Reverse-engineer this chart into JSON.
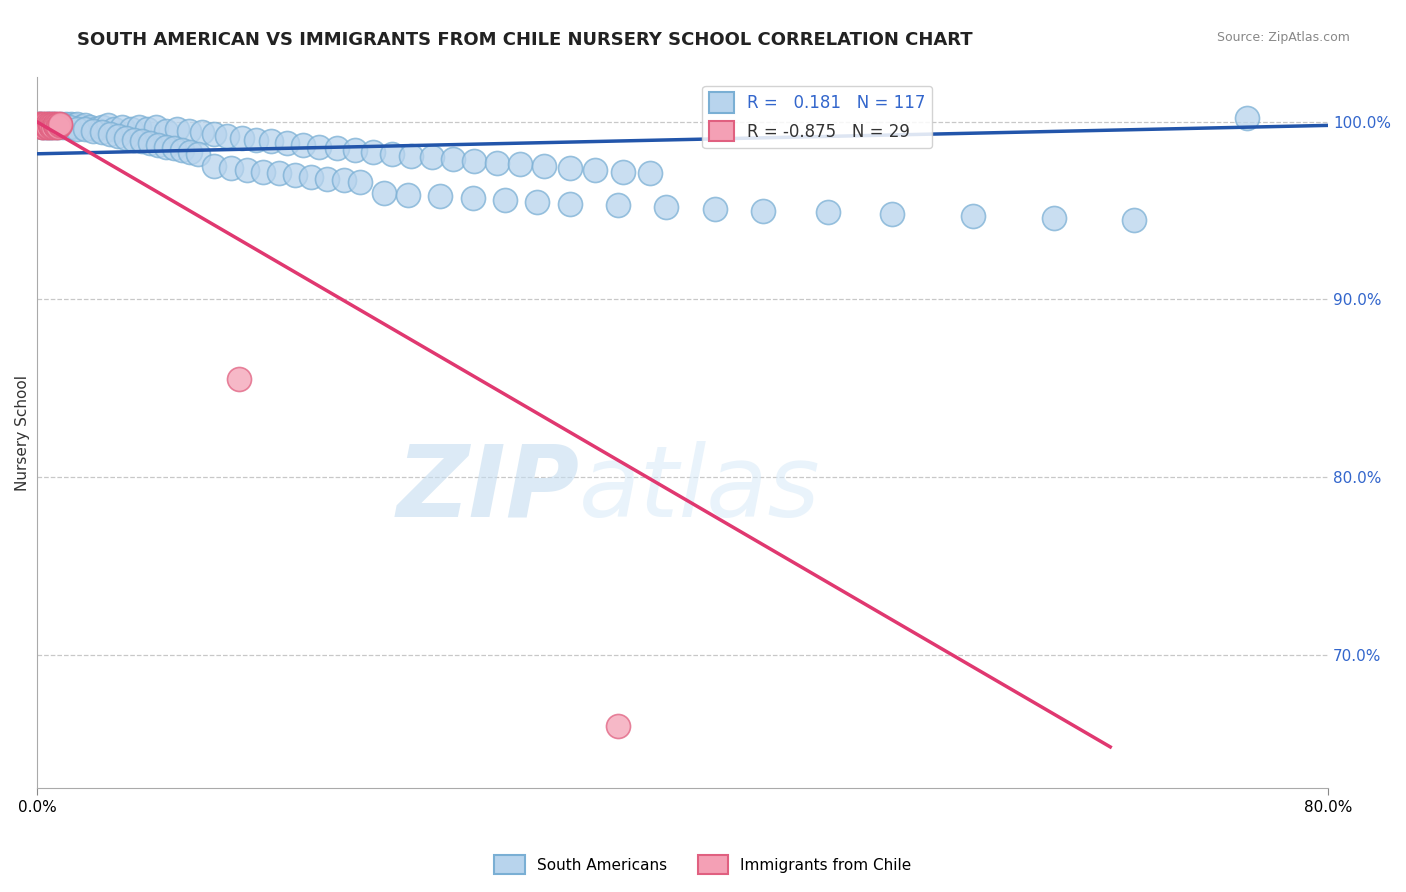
{
  "title": "SOUTH AMERICAN VS IMMIGRANTS FROM CHILE NURSERY SCHOOL CORRELATION CHART",
  "source": "Source: ZipAtlas.com",
  "ylabel": "Nursery School",
  "ylabel_right_ticks": [
    "100.0%",
    "90.0%",
    "80.0%",
    "70.0%"
  ],
  "ylabel_right_vals": [
    1.0,
    0.9,
    0.8,
    0.7
  ],
  "xmin": 0.0,
  "xmax": 0.8,
  "ymin": 0.625,
  "ymax": 1.025,
  "blue_R": 0.181,
  "blue_N": 117,
  "pink_R": -0.875,
  "pink_N": 29,
  "blue_color": "#b8d4ed",
  "blue_edge": "#7aafd4",
  "blue_line_color": "#2255aa",
  "pink_color": "#f4a0b5",
  "pink_edge": "#e06080",
  "pink_line_color": "#e03870",
  "legend_label_blue": "South Americans",
  "legend_label_pink": "Immigrants from Chile",
  "grid_color": "#c8c8c8",
  "background_color": "#ffffff",
  "blue_scatter_x": [
    0.001,
    0.002,
    0.003,
    0.003,
    0.004,
    0.004,
    0.005,
    0.005,
    0.006,
    0.006,
    0.007,
    0.007,
    0.008,
    0.008,
    0.009,
    0.009,
    0.01,
    0.01,
    0.011,
    0.011,
    0.012,
    0.013,
    0.014,
    0.015,
    0.016,
    0.017,
    0.018,
    0.019,
    0.02,
    0.021,
    0.022,
    0.023,
    0.025,
    0.027,
    0.03,
    0.033,
    0.036,
    0.04,
    0.044,
    0.048,
    0.053,
    0.058,
    0.063,
    0.068,
    0.074,
    0.08,
    0.087,
    0.094,
    0.102,
    0.11,
    0.118,
    0.127,
    0.136,
    0.145,
    0.155,
    0.165,
    0.175,
    0.186,
    0.197,
    0.208,
    0.22,
    0.232,
    0.245,
    0.258,
    0.271,
    0.285,
    0.299,
    0.314,
    0.33,
    0.346,
    0.363,
    0.38,
    0.015,
    0.02,
    0.025,
    0.03,
    0.035,
    0.04,
    0.045,
    0.05,
    0.055,
    0.06,
    0.065,
    0.07,
    0.075,
    0.08,
    0.085,
    0.09,
    0.095,
    0.1,
    0.11,
    0.12,
    0.13,
    0.14,
    0.15,
    0.16,
    0.17,
    0.18,
    0.19,
    0.2,
    0.215,
    0.23,
    0.25,
    0.27,
    0.29,
    0.31,
    0.33,
    0.36,
    0.39,
    0.42,
    0.45,
    0.49,
    0.53,
    0.58,
    0.63,
    0.68,
    0.75
  ],
  "blue_scatter_y": [
    0.999,
    0.999,
    0.998,
    0.997,
    0.998,
    0.999,
    0.997,
    0.998,
    0.999,
    0.997,
    0.998,
    0.999,
    0.997,
    0.998,
    0.999,
    0.997,
    0.998,
    0.999,
    0.997,
    0.998,
    0.999,
    0.997,
    0.998,
    0.999,
    0.997,
    0.998,
    0.999,
    0.997,
    0.998,
    0.999,
    0.997,
    0.998,
    0.999,
    0.997,
    0.998,
    0.997,
    0.996,
    0.997,
    0.998,
    0.996,
    0.997,
    0.996,
    0.997,
    0.996,
    0.997,
    0.995,
    0.996,
    0.995,
    0.994,
    0.993,
    0.992,
    0.991,
    0.99,
    0.989,
    0.988,
    0.987,
    0.986,
    0.985,
    0.984,
    0.983,
    0.982,
    0.981,
    0.98,
    0.979,
    0.978,
    0.977,
    0.976,
    0.975,
    0.974,
    0.973,
    0.972,
    0.971,
    0.998,
    0.997,
    0.996,
    0.996,
    0.995,
    0.994,
    0.993,
    0.992,
    0.991,
    0.99,
    0.989,
    0.988,
    0.987,
    0.986,
    0.985,
    0.984,
    0.983,
    0.982,
    0.975,
    0.974,
    0.973,
    0.972,
    0.971,
    0.97,
    0.969,
    0.968,
    0.967,
    0.966,
    0.96,
    0.959,
    0.958,
    0.957,
    0.956,
    0.955,
    0.954,
    0.953,
    0.952,
    0.951,
    0.95,
    0.949,
    0.948,
    0.947,
    0.946,
    0.945,
    1.002
  ],
  "pink_scatter_x": [
    0.001,
    0.002,
    0.002,
    0.003,
    0.003,
    0.004,
    0.004,
    0.005,
    0.005,
    0.006,
    0.006,
    0.007,
    0.007,
    0.008,
    0.008,
    0.009,
    0.009,
    0.01,
    0.01,
    0.011,
    0.011,
    0.012,
    0.012,
    0.013,
    0.013,
    0.014,
    0.014,
    0.125,
    0.36
  ],
  "pink_scatter_y": [
    0.999,
    0.999,
    0.998,
    0.997,
    0.998,
    0.999,
    0.997,
    0.998,
    0.999,
    0.997,
    0.998,
    0.999,
    0.997,
    0.998,
    0.999,
    0.997,
    0.998,
    0.999,
    0.997,
    0.998,
    0.999,
    0.997,
    0.998,
    0.999,
    0.997,
    0.998,
    0.999,
    0.855,
    0.66
  ],
  "blue_line_x": [
    0.0,
    0.8
  ],
  "blue_line_y": [
    0.982,
    0.998
  ],
  "pink_line_x": [
    0.0,
    0.665
  ],
  "pink_line_y": [
    1.0,
    0.648
  ]
}
